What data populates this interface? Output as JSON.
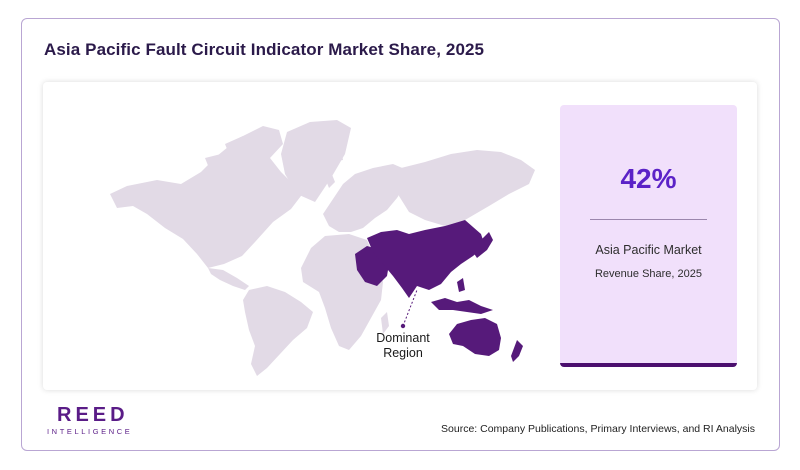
{
  "title": "Asia Pacific Fault Circuit Indicator Market Share, 2025",
  "map": {
    "annotation": "Dominant Region",
    "highlighted_region": "Asia Pacific",
    "highlight_color": "#561a7a",
    "base_color": "#e2dae6"
  },
  "stat": {
    "value": "42%",
    "label_line1": "Asia Pacific Market",
    "label_line2": "Revenue Share, 2025"
  },
  "brand": {
    "name": "REED",
    "subtitle": "INTELLIGENCE",
    "color": "#5a1c87"
  },
  "source": "Source: Company Publications, Primary Interviews, and RI Analysis",
  "colors": {
    "frame_border": "#b9a6d3",
    "stat_card_bg": "#f1e0fb",
    "stat_value": "#5b22c7",
    "title_text": "#2b1a4a"
  }
}
